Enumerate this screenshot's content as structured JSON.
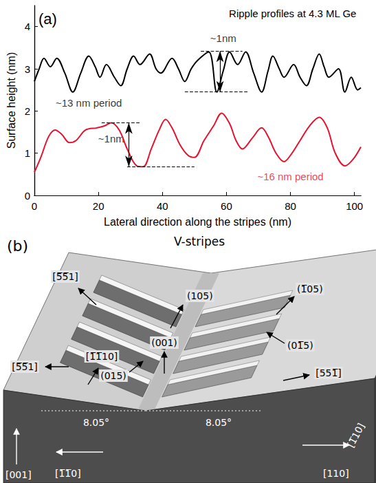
{
  "chart_data": {
    "type": "line",
    "panel": "(a)",
    "title": "Ripple profiles at 4.3 ML Ge",
    "x_label": "Lateral direction along the stripes (nm)",
    "y_label": "Surface height (nm)",
    "xlim": [
      0,
      102
    ],
    "xticks": [
      0,
      20,
      40,
      60,
      80,
      100
    ],
    "ylim": [
      0,
      4.5
    ],
    "yticks": [
      0,
      1,
      2,
      3,
      4
    ],
    "grid": false,
    "series": [
      {
        "color": "#000000",
        "line_style": "solid",
        "x": [
          0,
          1.5,
          3,
          5,
          7,
          9.5,
          12,
          14.5,
          17,
          19,
          20.5,
          22.5,
          25,
          27,
          29,
          31,
          33,
          36,
          38,
          39.5,
          43,
          45,
          47,
          49,
          51,
          54.5,
          57,
          59,
          61,
          63.5,
          66,
          68.5,
          71,
          73,
          74.5,
          76.5,
          78,
          81,
          83,
          85,
          87,
          89,
          90.5,
          92,
          95,
          97,
          99,
          101,
          102
        ],
        "values": [
          2.7,
          3.0,
          3.25,
          3.05,
          3.25,
          2.9,
          2.45,
          2.9,
          3.3,
          3.05,
          2.8,
          3.1,
          2.8,
          2.6,
          3.0,
          3.3,
          3.1,
          3.35,
          3.0,
          2.9,
          3.25,
          3.0,
          2.7,
          3.0,
          3.2,
          3.4,
          2.45,
          2.95,
          3.4,
          3.1,
          3.4,
          2.9,
          2.45,
          2.95,
          3.3,
          3.0,
          2.8,
          3.1,
          2.8,
          2.6,
          3.0,
          3.35,
          3.05,
          2.8,
          3.0,
          2.45,
          2.8,
          2.5,
          2.55
        ],
        "bracket": {
          "color": "#000000",
          "x": 58,
          "low": 2.45,
          "high": 3.42,
          "low_from": 47,
          "low_to": 67,
          "high_from": 52,
          "high_to": 65
        }
      },
      {
        "color": "#e8112d",
        "line_style": "solid",
        "x": [
          0,
          2,
          4.5,
          6.5,
          8.5,
          11,
          13,
          16,
          19.5,
          22,
          24,
          26.5,
          29,
          32,
          34,
          36.5,
          39,
          41,
          43,
          45.5,
          48,
          50,
          53,
          56,
          58.5,
          61,
          63,
          65,
          68,
          71,
          73,
          75.5,
          78,
          80,
          83,
          86,
          89,
          91.5,
          94,
          97,
          99.5,
          102
        ],
        "values": [
          0.55,
          0.9,
          1.4,
          1.55,
          1.45,
          1.25,
          1.3,
          1.55,
          1.6,
          1.65,
          1.72,
          1.55,
          1.1,
          0.7,
          0.68,
          1.1,
          1.55,
          1.8,
          1.6,
          1.2,
          0.95,
          0.9,
          1.3,
          1.65,
          1.95,
          1.7,
          1.3,
          1.1,
          1.35,
          1.6,
          1.4,
          1.0,
          0.8,
          0.95,
          1.3,
          1.65,
          1.85,
          1.6,
          1.0,
          0.7,
          0.85,
          1.15
        ],
        "bracket": {
          "color": "#000000",
          "x": 29.5,
          "low": 0.68,
          "high": 1.72,
          "low_from": 29,
          "low_to": 50,
          "high_from": 21,
          "high_to": 33
        }
      }
    ],
    "annotations": [
      {
        "text": "~1nm",
        "x": 59,
        "y": 3.72,
        "color": "#000000"
      },
      {
        "text": "~13 nm period",
        "x": 17,
        "y": 2.2,
        "color": "#000000"
      },
      {
        "text": "~1nm",
        "x": 24,
        "y": 1.35,
        "color": "#000000"
      },
      {
        "text": "~16 nm period",
        "x": 80,
        "y": 0.45,
        "color": "#e8112d"
      }
    ]
  },
  "diagram": {
    "panel": "(b)",
    "title": "V-stripes",
    "labels": [
      "[5̅5̅1]",
      "(105)",
      "(1̅05)",
      "(001)",
      "(015)",
      "(01̅5)",
      "[5̅5̅1]",
      "[1̅1̅10]",
      "[551̅]",
      "[1̅10]",
      "[001]",
      "[1̅1̅0]",
      "[110]"
    ],
    "angles": [
      "8.05°",
      "8.05°"
    ]
  }
}
